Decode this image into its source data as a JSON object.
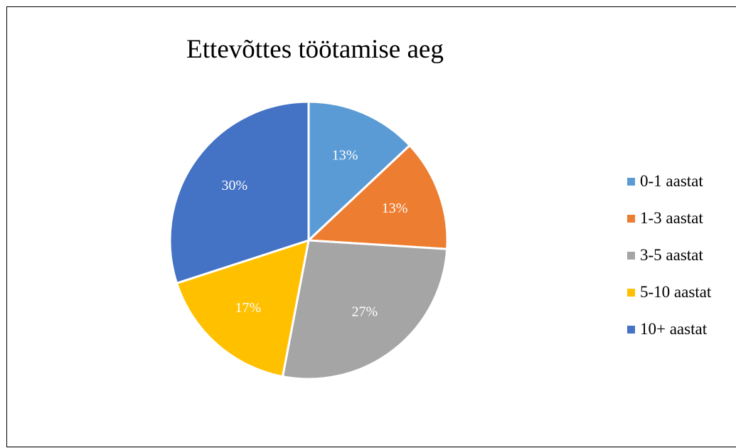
{
  "chart_data": {
    "type": "pie",
    "title": "Ettevõttes töötamise aeg",
    "legend_position": "right",
    "slices": [
      {
        "label": "0-1 aastat",
        "value": 13,
        "value_label": "13%",
        "color": "#5B9BD5"
      },
      {
        "label": "1-3 aastat",
        "value": 13,
        "value_label": "13%",
        "color": "#ED7D31"
      },
      {
        "label": "3-5 aastat",
        "value": 27,
        "value_label": "27%",
        "color": "#A5A5A5"
      },
      {
        "label": "5-10 aastat",
        "value": 17,
        "value_label": "17%",
        "color": "#FFC000"
      },
      {
        "label": "10+ aastat",
        "value": 30,
        "value_label": "30%",
        "color": "#4472C4"
      }
    ]
  }
}
